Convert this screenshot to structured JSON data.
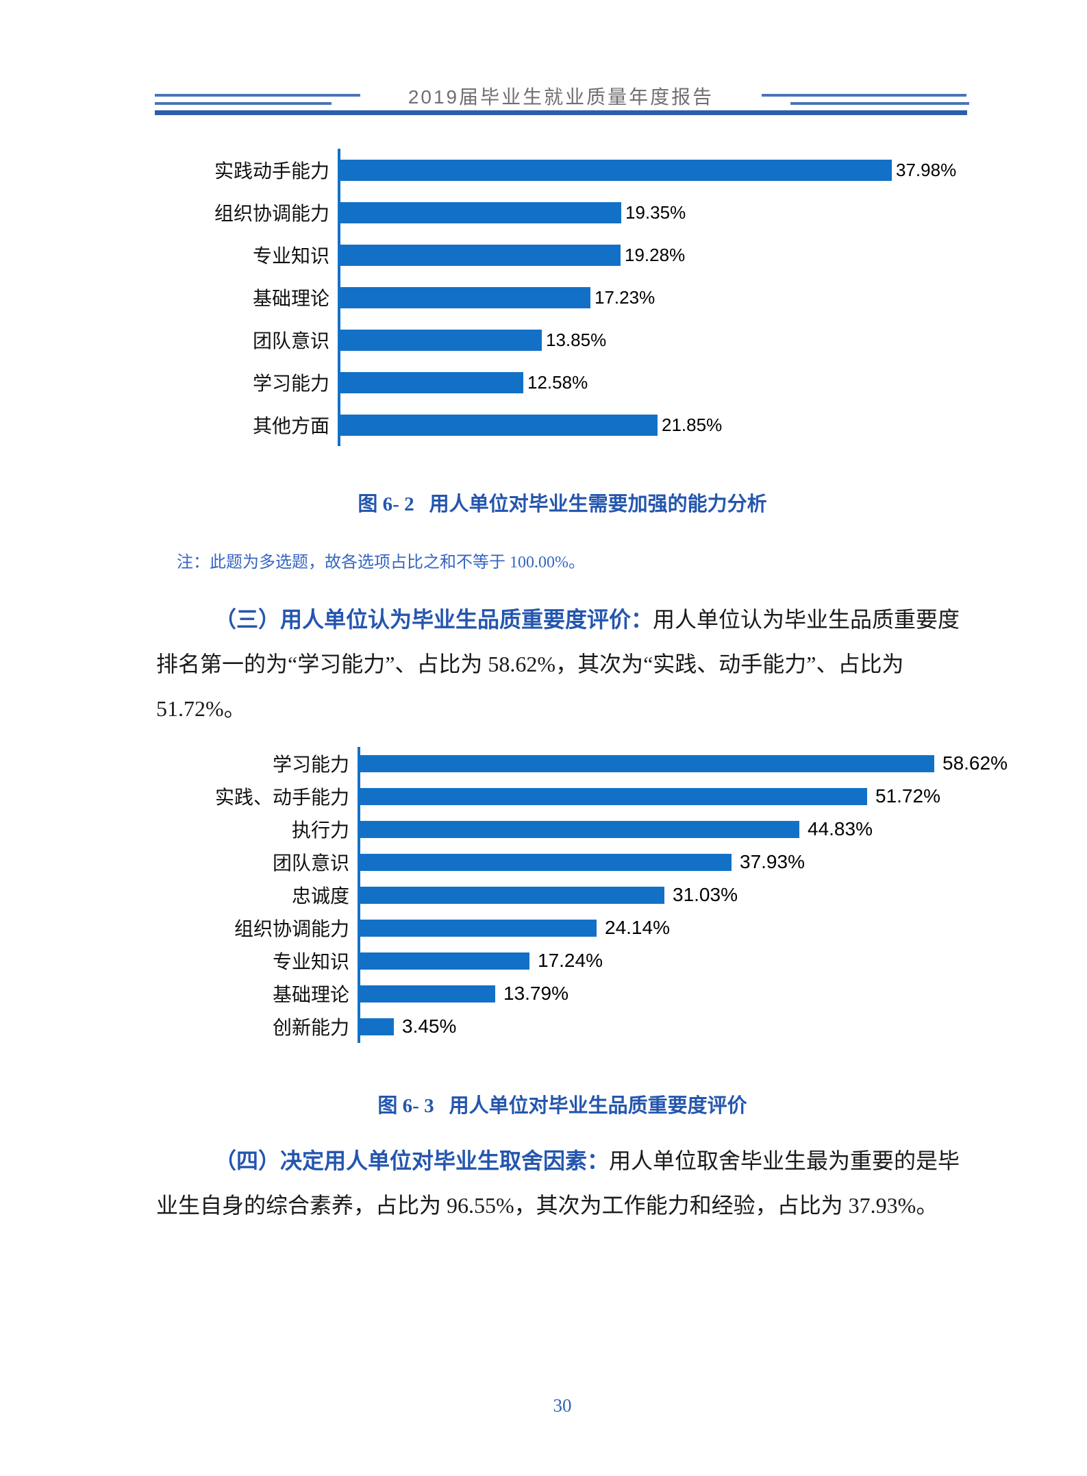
{
  "header": {
    "title": "2019届毕业生就业质量年度报告"
  },
  "chart_data": [
    {
      "type": "bar",
      "orientation": "horizontal",
      "title": "图 6- 2 用人单位对毕业生需要加强的能力分析",
      "categories": [
        "实践动手能力",
        "组织协调能力",
        "专业知识",
        "基础理论",
        "团队意识",
        "学习能力",
        "其他方面"
      ],
      "values": [
        37.98,
        19.35,
        19.28,
        17.23,
        13.85,
        12.58,
        21.85
      ],
      "value_labels": [
        "37.98%",
        "19.35%",
        "19.28%",
        "17.23%",
        "13.85%",
        "12.58%",
        "21.85%"
      ],
      "unit": "%",
      "bar_color": "#1271c7",
      "axis_color": "#1271c7",
      "grid": false,
      "legend": false,
      "xlim": [
        0,
        40
      ]
    },
    {
      "type": "bar",
      "orientation": "horizontal",
      "title": "图 6- 3 用人单位对毕业生品质重要度评价",
      "categories": [
        "学习能力",
        "实践、动手能力",
        "执行力",
        "团队意识",
        "忠诚度",
        "组织协调能力",
        "专业知识",
        "基础理论",
        "创新能力"
      ],
      "values": [
        58.62,
        51.72,
        44.83,
        37.93,
        31.03,
        24.14,
        17.24,
        13.79,
        3.45
      ],
      "value_labels": [
        "58.62%",
        "51.72%",
        "44.83%",
        "37.93%",
        "31.03%",
        "24.14%",
        "17.24%",
        "13.79%",
        "3.45%"
      ],
      "unit": "%",
      "bar_color": "#1271c7",
      "axis_color": "#1271c7",
      "grid": false,
      "legend": false,
      "xlim": [
        0,
        60
      ]
    }
  ],
  "figures": [
    {
      "label": "图 6- 2",
      "title": "用人单位对毕业生需要加强的能力分析"
    },
    {
      "label": "图 6- 3",
      "title": "用人单位对毕业生品质重要度评价"
    }
  ],
  "note": "注：此题为多选题，故各选项占比之和不等于 100.00%。",
  "paragraphs": [
    {
      "lines": [
        {
          "bold": "（三）用人单位认为毕业生品质重要度评价：",
          "plain": "用人单位认为毕业生品质重要度"
        },
        {
          "bold": "",
          "plain": "排名第一的为“学习能力”、占比为 58.62%，其次为“实践、动手能力”、占比为"
        },
        {
          "bold": "",
          "plain": "51.72%。"
        }
      ]
    },
    {
      "lines": [
        {
          "bold": "（四）决定用人单位对毕业生取舍因素：",
          "plain": "用人单位取舍毕业生最为重要的是毕"
        },
        {
          "bold": "",
          "plain": "业生自身的综合素养，占比为 96.55%，其次为工作能力和经验，占比为 37.93%。"
        }
      ]
    }
  ],
  "footer": {
    "page_number": "30"
  }
}
